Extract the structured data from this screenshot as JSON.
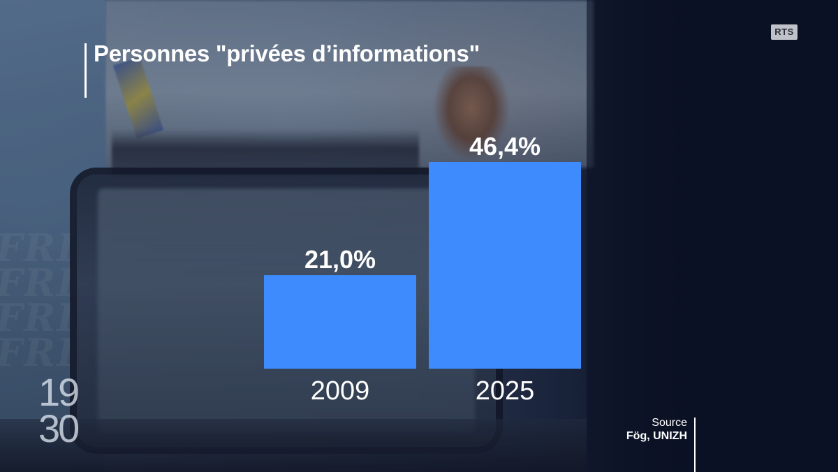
{
  "broadcaster_logo": "RTS",
  "show": {
    "time_top": "19",
    "time_bottom": "30"
  },
  "background_text": "FRIBOURG",
  "source": {
    "label": "Source",
    "value": "Fög, UNIZH"
  },
  "colors": {
    "bar": "#3d8bfd",
    "text": "#ffffff"
  },
  "chart_data": {
    "type": "bar",
    "title": "Personnes \"privées d’informations\"",
    "xlabel": "",
    "ylabel": "",
    "categories": [
      "2009",
      "2025"
    ],
    "values": [
      21.0,
      46.4
    ],
    "value_labels": [
      "21,0%",
      "46,4%"
    ],
    "unit": "%",
    "ylim": [
      0,
      60
    ],
    "grid": false,
    "legend": "none"
  }
}
